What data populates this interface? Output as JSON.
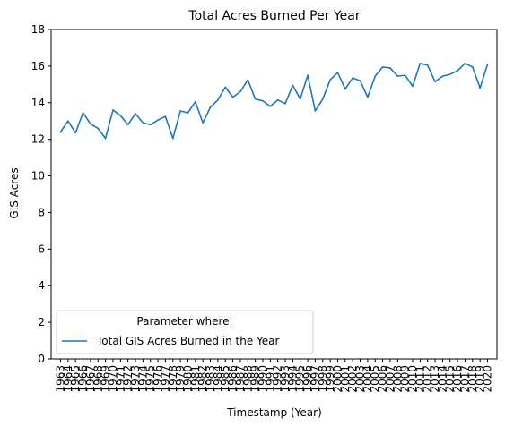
{
  "chart_data": {
    "type": "line",
    "title": "Total Acres Burned Per Year",
    "xlabel": "Timestamp (Year)",
    "ylabel": "GIS Acres",
    "ylim": [
      0,
      18
    ],
    "yticks": [
      0,
      2,
      4,
      6,
      8,
      10,
      12,
      14,
      16,
      18
    ],
    "grid": false,
    "legend": {
      "placement": "lower-left",
      "title": "Parameter where:"
    },
    "x": [
      1963,
      1964,
      1965,
      1966,
      1967,
      1968,
      1969,
      1970,
      1971,
      1972,
      1973,
      1974,
      1975,
      1976,
      1977,
      1978,
      1979,
      1980,
      1981,
      1982,
      1983,
      1984,
      1985,
      1986,
      1987,
      1988,
      1989,
      1990,
      1991,
      1992,
      1993,
      1994,
      1995,
      1996,
      1997,
      1998,
      1999,
      2000,
      2001,
      2002,
      2003,
      2004,
      2005,
      2006,
      2007,
      2008,
      2009,
      2010,
      2011,
      2012,
      2013,
      2014,
      2015,
      2016,
      2017,
      2018,
      2019,
      2020
    ],
    "series": [
      {
        "name": "Total GIS Acres Burned in the Year",
        "color": "#1f77b4",
        "values": [
          12.4,
          13.0,
          12.35,
          13.45,
          12.85,
          12.6,
          12.05,
          13.6,
          13.3,
          12.8,
          13.4,
          12.9,
          12.8,
          13.05,
          13.25,
          12.05,
          13.55,
          13.45,
          14.05,
          12.9,
          13.75,
          14.15,
          14.85,
          14.3,
          14.6,
          15.25,
          14.2,
          14.1,
          13.8,
          14.15,
          13.95,
          14.95,
          14.2,
          15.5,
          13.55,
          14.2,
          15.25,
          15.65,
          14.75,
          15.35,
          15.2,
          14.3,
          15.45,
          15.95,
          15.9,
          15.45,
          15.5,
          14.9,
          16.15,
          16.05,
          15.15,
          15.45,
          15.55,
          15.75,
          16.15,
          15.95,
          14.8,
          16.1
        ]
      }
    ]
  }
}
